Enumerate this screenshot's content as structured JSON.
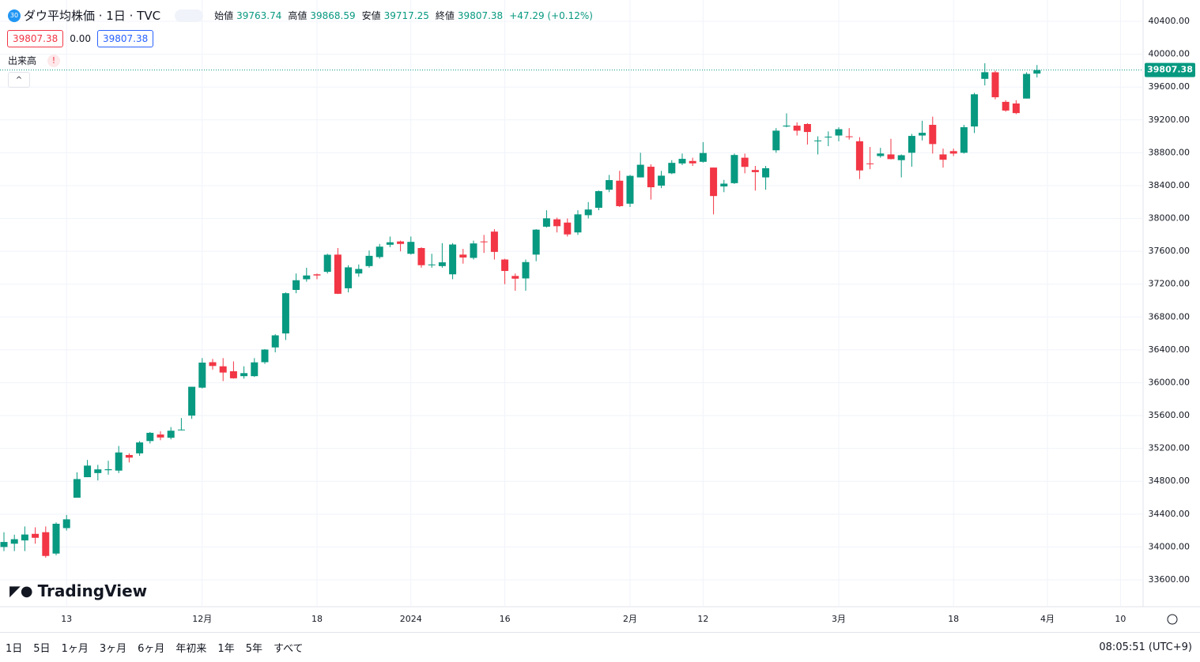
{
  "header": {
    "badge": "30",
    "title": "ダウ平均株価 · 1日 · TVC",
    "open_label": "始値",
    "open": 39763.74,
    "high_label": "高値",
    "high": 39868.59,
    "low_label": "安値",
    "low": 39717.25,
    "close_label": "終値",
    "close": 39807.38,
    "change": "+47.29 (+0.12%)",
    "bid": 39807.38,
    "spread": "0.00",
    "ask": 39807.38,
    "volume_label": "出来高"
  },
  "logo": "TradingView",
  "toolbar": {
    "ranges": [
      "1日",
      "5日",
      "1ヶ月",
      "3ヶ月",
      "6ヶ月",
      "年初来",
      "1年",
      "5年",
      "すべて"
    ],
    "time": "08:05:51 (UTC+9)"
  },
  "chart_data": {
    "type": "candlestick",
    "up_color": "#089981",
    "down_color": "#f23645",
    "grid": true,
    "ylim": [
      33273,
      40660
    ],
    "yticks": [
      {
        "value": 33600,
        "label": "33600.00"
      },
      {
        "value": 34000,
        "label": "34000.00"
      },
      {
        "value": 34400,
        "label": "34400.00"
      },
      {
        "value": 34800,
        "label": "34800.00"
      },
      {
        "value": 35200,
        "label": "35200.00"
      },
      {
        "value": 35600,
        "label": "35600.00"
      },
      {
        "value": 36000,
        "label": "36000.00"
      },
      {
        "value": 36400,
        "label": "36400.00"
      },
      {
        "value": 36800,
        "label": "36800.00"
      },
      {
        "value": 37200,
        "label": "37200.00"
      },
      {
        "value": 37600,
        "label": "37600.00"
      },
      {
        "value": 38000,
        "label": "38000.00"
      },
      {
        "value": 38400,
        "label": "38400.00"
      },
      {
        "value": 38800,
        "label": "38800.00"
      },
      {
        "value": 39200,
        "label": "39200.00"
      },
      {
        "value": 39600,
        "label": "39600.00"
      },
      {
        "value": 40000,
        "label": "40000.00"
      },
      {
        "value": 40400,
        "label": "40400.00"
      }
    ],
    "categories": [
      null,
      null,
      null,
      null,
      null,
      null,
      "13",
      null,
      null,
      null,
      null,
      null,
      null,
      null,
      null,
      null,
      null,
      null,
      null,
      "12月",
      null,
      null,
      null,
      null,
      null,
      null,
      null,
      null,
      null,
      null,
      "18",
      null,
      null,
      null,
      null,
      null,
      null,
      null,
      null,
      "2024",
      null,
      null,
      null,
      null,
      null,
      null,
      null,
      null,
      "16",
      null,
      null,
      null,
      null,
      null,
      null,
      null,
      null,
      null,
      null,
      null,
      "2月",
      null,
      null,
      null,
      null,
      null,
      null,
      "12",
      null,
      null,
      null,
      null,
      null,
      null,
      null,
      null,
      null,
      null,
      null,
      null,
      "3月",
      null,
      null,
      null,
      null,
      null,
      null,
      null,
      null,
      null,
      null,
      "18",
      null,
      null,
      null,
      null,
      null,
      null,
      null,
      null
    ],
    "future_categories": [
      "4月",
      null,
      null,
      null,
      null,
      null,
      null,
      "10"
    ],
    "open": [
      34000,
      34040,
      34080,
      34160,
      34180,
      33920,
      34230,
      34600,
      34850,
      34900,
      34935,
      34930,
      35120,
      35140,
      35290,
      35370,
      35330,
      35425,
      35600,
      35940,
      36250,
      36200,
      36140,
      36080,
      36080,
      36250,
      36430,
      36600,
      37130,
      37260,
      37320,
      37350,
      37560,
      37150,
      37330,
      37420,
      37530,
      37680,
      37720,
      37570,
      37640,
      37430,
      37420,
      37320,
      37560,
      37520,
      37720,
      37840,
      37500,
      37300,
      37270,
      37560,
      37900,
      37990,
      37950,
      37830,
      38040,
      38130,
      38350,
      38460,
      38180,
      38500,
      38630,
      38400,
      38550,
      38670,
      38700,
      38690,
      38620,
      38390,
      38430,
      38740,
      38590,
      38500,
      38830,
      39120,
      39130,
      39150,
      38940,
      38990,
      39010,
      39000,
      38940,
      38670,
      38760,
      38780,
      38710,
      38800,
      39010,
      39140,
      38780,
      38820,
      38800,
      39120,
      39700,
      39780,
      39420,
      39400,
      39460,
      39763.74
    ],
    "high": [
      34180,
      34150,
      34250,
      34240,
      34250,
      34300,
      34390,
      34910,
      35060,
      35000,
      35050,
      35230,
      35140,
      35290,
      35400,
      35410,
      35460,
      35570,
      35950,
      36300,
      36290,
      36300,
      36260,
      36200,
      36300,
      36410,
      36590,
      37100,
      37330,
      37400,
      37330,
      37570,
      37640,
      37430,
      37440,
      37610,
      37690,
      37780,
      37730,
      37780,
      37650,
      37570,
      37700,
      37700,
      37630,
      37730,
      37800,
      37870,
      37510,
      37330,
      37500,
      37870,
      38100,
      38010,
      38000,
      38100,
      38200,
      38340,
      38530,
      38580,
      38530,
      38800,
      38660,
      38580,
      38710,
      38790,
      38740,
      38930,
      38620,
      38470,
      38790,
      38790,
      38640,
      38640,
      39100,
      39280,
      39170,
      39160,
      39000,
      39060,
      39110,
      39100,
      38990,
      38870,
      38860,
      38970,
      38780,
      39030,
      39190,
      39240,
      38850,
      38850,
      39140,
      39530,
      39890,
      39800,
      39440,
      39440,
      39780,
      39868.59
    ],
    "low": [
      33950,
      33950,
      33950,
      34040,
      33870,
      33900,
      34200,
      34600,
      34850,
      34810,
      34880,
      34900,
      35030,
      35110,
      35260,
      35300,
      35310,
      35420,
      35560,
      35930,
      36160,
      36020,
      36050,
      36050,
      36070,
      36230,
      36370,
      36520,
      37090,
      37230,
      37260,
      37330,
      37080,
      37100,
      37290,
      37400,
      37510,
      37650,
      37600,
      37560,
      37400,
      37400,
      37400,
      37260,
      37450,
      37500,
      37580,
      37500,
      37200,
      37120,
      37120,
      37480,
      37890,
      37830,
      37780,
      37800,
      38000,
      38100,
      38320,
      38140,
      38140,
      38500,
      38230,
      38370,
      38540,
      38650,
      38640,
      38680,
      38050,
      38320,
      38420,
      38550,
      38340,
      38350,
      38800,
      39110,
      39010,
      38900,
      38780,
      38880,
      38940,
      38960,
      38480,
      38600,
      38740,
      38720,
      38500,
      38630,
      38950,
      38790,
      38620,
      38760,
      38790,
      39040,
      39620,
      39450,
      39300,
      39270,
      39460,
      39717.25
    ],
    "close": [
      34061,
      34095,
      34152,
      34112,
      33891,
      34283,
      34337,
      34827,
      34991,
      34945,
      34947,
      35151,
      35088,
      35273,
      35390,
      35333,
      35416,
      35430,
      35951,
      36245,
      36204,
      36124,
      36054,
      36117,
      36248,
      36404,
      36577,
      37090,
      37248,
      37306,
      37306,
      37558,
      37083,
      37405,
      37385,
      37545,
      37657,
      37710,
      37690,
      37715,
      37431,
      37440,
      37466,
      37683,
      37525,
      37696,
      37711,
      37593,
      37361,
      37267,
      37469,
      37864,
      38002,
      37906,
      37806,
      38050,
      38109,
      38333,
      38467,
      38150,
      38519,
      38654,
      38380,
      38521,
      38677,
      38726,
      38671,
      38797,
      38273,
      38424,
      38773,
      38628,
      38564,
      38612,
      39069,
      39131,
      39069,
      39053,
      38950,
      38996,
      39087,
      38990,
      38585,
      38661,
      38791,
      38723,
      38770,
      39005,
      39043,
      38906,
      38715,
      38790,
      39111,
      39512,
      39781,
      39476,
      39314,
      39283,
      39760,
      39807.38
    ]
  }
}
